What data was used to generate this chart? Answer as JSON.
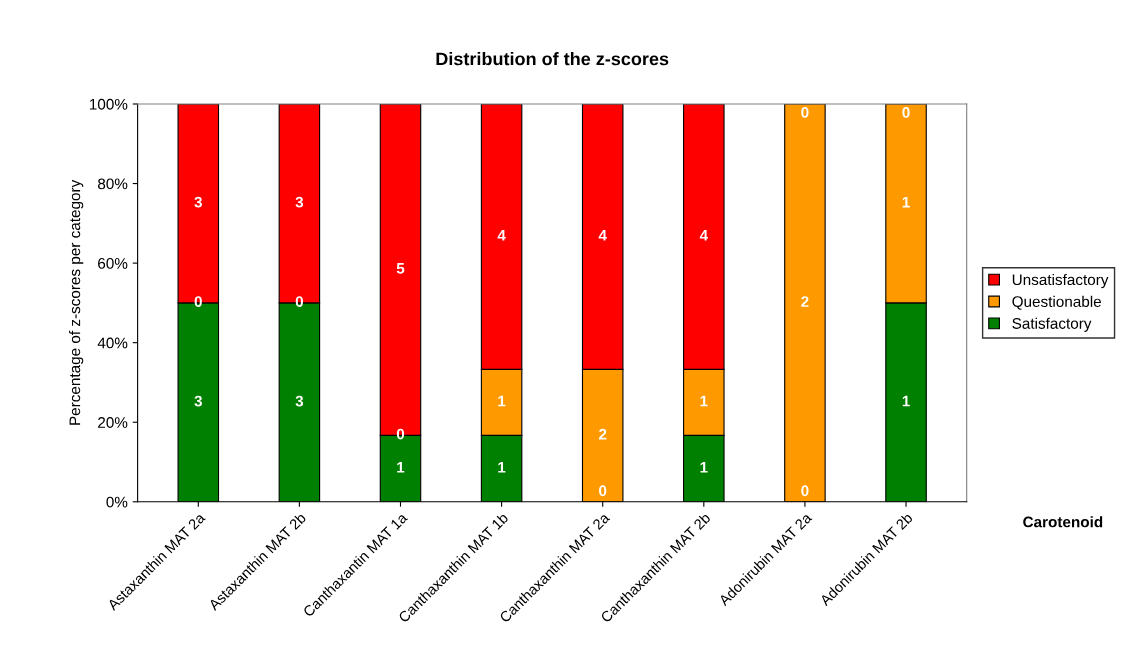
{
  "chart_data": {
    "type": "bar",
    "stacked": true,
    "title": "Distribution of the z-scores",
    "xlabel": "Carotenoid",
    "ylabel": "Percentage of z-scores per category",
    "categories": [
      "Astaxanthin MAT 2a",
      "Astaxanthin MAT 2b",
      "Canthaxantin MAT 1a",
      "Canthaxanthin MAT 1b",
      "Canthaxanthin MAT 2a",
      "Canthaxanthin MAT 2b",
      "Adonirubin MAT 2a",
      "Adonirubin MAT 2b"
    ],
    "series": [
      {
        "name": "Satisfactory",
        "color": "#008000",
        "values": [
          50,
          50,
          16.7,
          16.7,
          0,
          16.7,
          0,
          50
        ]
      },
      {
        "name": "Questionable",
        "color": "#ff9900",
        "values": [
          0,
          0,
          0,
          16.6,
          33.3,
          16.6,
          100,
          50
        ]
      },
      {
        "name": "Unsatisfactory",
        "color": "#ff0000",
        "values": [
          50,
          50,
          83.3,
          66.7,
          66.7,
          66.7,
          0,
          0
        ]
      }
    ],
    "annotations": [
      "3",
      "0",
      "3",
      "3",
      "0",
      "3",
      "1",
      "0",
      "5",
      "1",
      "1",
      "4",
      "0",
      "2",
      "4",
      "1",
      "1",
      "4",
      "0",
      "2",
      "0",
      "1",
      "1",
      "0"
    ],
    "ylim": [
      0,
      100
    ],
    "yticks": [
      {
        "value": 0,
        "label": "0%"
      },
      {
        "value": 20,
        "label": "20%"
      },
      {
        "value": 40,
        "label": "40%"
      },
      {
        "value": 60,
        "label": "60%"
      },
      {
        "value": 80,
        "label": "80%"
      },
      {
        "value": 100,
        "label": "100%"
      }
    ],
    "legend": "right",
    "grid": false
  }
}
